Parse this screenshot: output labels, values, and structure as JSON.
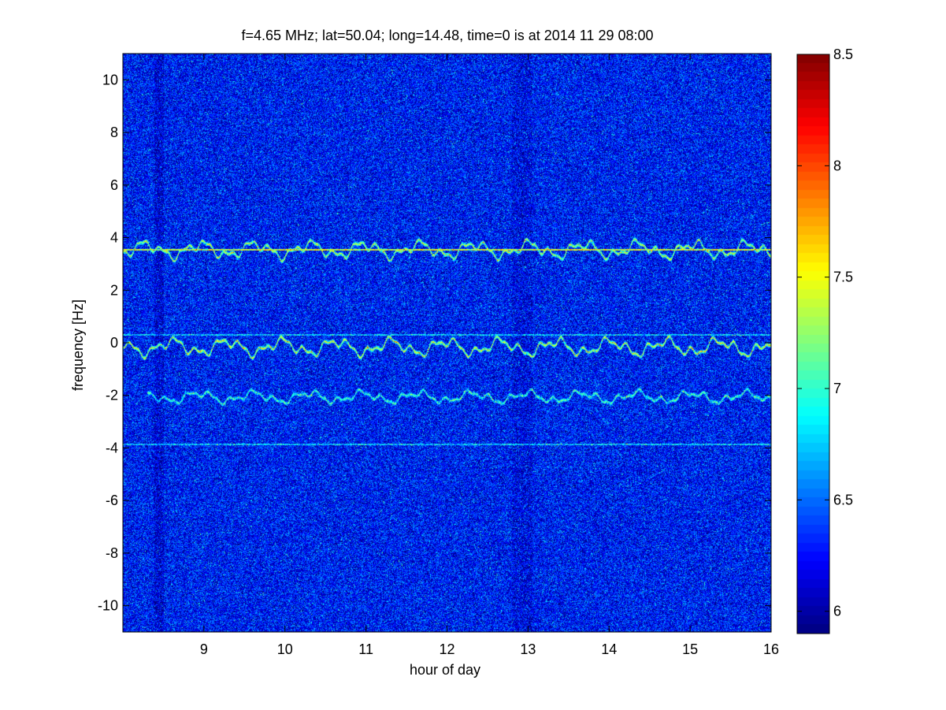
{
  "chart_data": {
    "type": "heatmap",
    "title": "f=4.65 MHz;  lat=50.04; long=14.48, time=0 is at 2014 11 29 08:00",
    "xlabel": "hour of day",
    "ylabel": "frequency [Hz]",
    "xlim": [
      8.0,
      16.0
    ],
    "ylim": [
      -11.0,
      11.0
    ],
    "x_ticks": [
      9,
      10,
      11,
      12,
      13,
      14,
      15,
      16
    ],
    "x_tick_labels": [
      "9",
      "10",
      "11",
      "12",
      "13",
      "14",
      "15",
      "16"
    ],
    "y_ticks": [
      10,
      8,
      6,
      4,
      2,
      0,
      -2,
      -4,
      -6,
      -8,
      -10
    ],
    "y_tick_labels": [
      "10",
      "8",
      "6",
      "4",
      "2",
      "0",
      "-2",
      "-4",
      "-6",
      "-8",
      "-10"
    ],
    "colorbar": {
      "colormap": "jet",
      "clim": [
        5.9,
        8.5
      ],
      "ticks": [
        6,
        6.5,
        7,
        7.5,
        8,
        8.5
      ],
      "tick_labels": [
        "6",
        "6.5",
        "7",
        "7.5",
        "8",
        "8.5"
      ]
    },
    "background_level": 6.25,
    "traces": [
      {
        "center_hz": 3.55,
        "x_start": 8.0,
        "x_end": 16.0,
        "peak_level": 7.8
      },
      {
        "center_hz": -0.15,
        "x_start": 8.0,
        "x_end": 16.0,
        "peak_level": 7.9
      },
      {
        "center_hz": -2.05,
        "x_start": 8.3,
        "x_end": 16.0,
        "peak_level": 7.3
      }
    ],
    "reference_lines": [
      {
        "y": 3.55,
        "x_start": 8.0,
        "x_end": 16.0,
        "level": 7.6
      },
      {
        "y": 0.3,
        "x_start": 8.0,
        "x_end": 16.0,
        "level": 6.8
      },
      {
        "y": -3.85,
        "x_start": 8.0,
        "x_end": 16.0,
        "level": 6.8
      }
    ],
    "grid": false
  }
}
